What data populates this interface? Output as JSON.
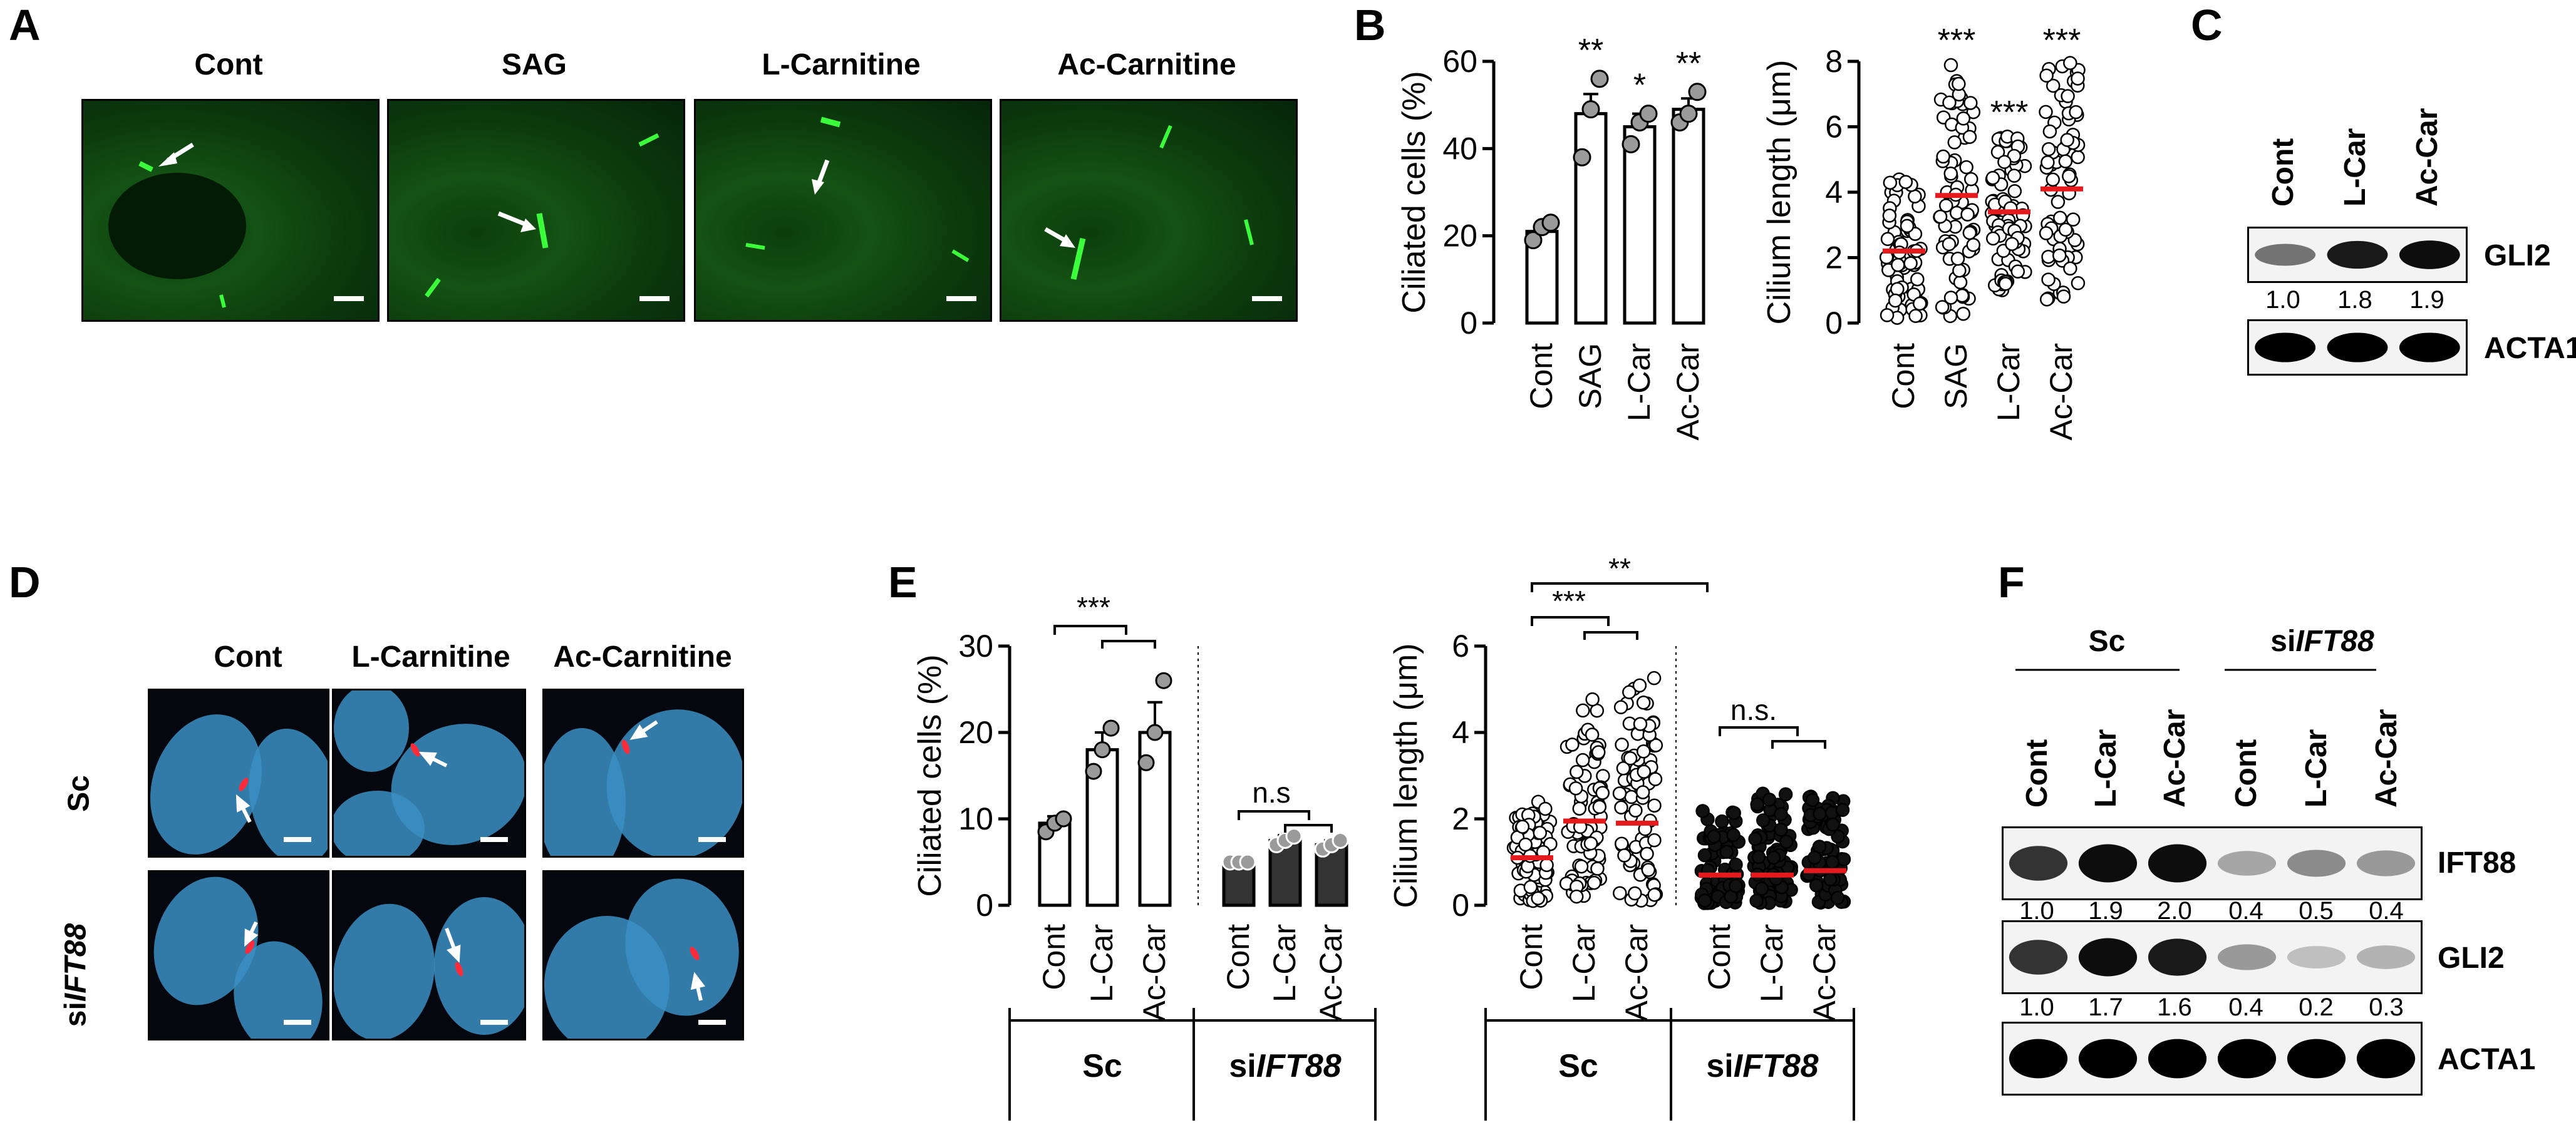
{
  "panel_labels": [
    "A",
    "B",
    "C",
    "D",
    "E",
    "F"
  ],
  "panelA": {
    "columns": [
      "Cont",
      "SAG",
      "L-Carnitine",
      "Ac-Carnitine"
    ]
  },
  "panelB": {
    "ciliated": {
      "ylabel": "Ciliated cells (%)",
      "categories": [
        "Cont",
        "SAG",
        "L-Car",
        "Ac-Car"
      ],
      "values": [
        21,
        48,
        45,
        49
      ],
      "errors": [
        1.5,
        4.5,
        3,
        2.5
      ],
      "points": [
        [
          19,
          22,
          23
        ],
        [
          38,
          49,
          56
        ],
        [
          41,
          46,
          48
        ],
        [
          46,
          48,
          53
        ]
      ],
      "ylim": [
        0,
        60
      ],
      "yticks": [
        "0",
        "20",
        "40",
        "60"
      ],
      "stars": [
        "",
        "**",
        "*",
        "**"
      ]
    },
    "length": {
      "ylabel": "Cilium length (μm)",
      "categories": [
        "Cont",
        "SAG",
        "L-Car",
        "Ac-Car"
      ],
      "medians": [
        2.2,
        3.9,
        3.4,
        4.1
      ],
      "ranges": [
        [
          0.1,
          4.4
        ],
        [
          0.2,
          8.0
        ],
        [
          1.0,
          5.8
        ],
        [
          0.6,
          8.0
        ]
      ],
      "ylim": [
        0,
        8
      ],
      "yticks": [
        "0",
        "2",
        "4",
        "6",
        "8"
      ],
      "stars": [
        "",
        "***",
        "***",
        "***"
      ]
    }
  },
  "panelC": {
    "lanes": [
      "Cont",
      "L-Car",
      "Ac-Car"
    ],
    "rows": [
      "GLI2",
      "ACTA1"
    ],
    "quant": [
      "1.0",
      "1.8",
      "1.9"
    ],
    "intensity": [
      0.55,
      0.9,
      0.95
    ]
  },
  "panelD": {
    "columns": [
      "Cont",
      "L-Carnitine",
      "Ac-Carnitine"
    ],
    "rows": [
      "Sc",
      "siIFT88"
    ]
  },
  "panelE": {
    "ciliated": {
      "ylabel": "Ciliated cells (%)",
      "categories": [
        "Cont",
        "L-Car",
        "Ac-Car",
        "Cont",
        "L-Car",
        "Ac-Car"
      ],
      "values": [
        9.5,
        18,
        20,
        5,
        7.5,
        7
      ],
      "errors": [
        0.8,
        2,
        3.5,
        0.4,
        0.6,
        0.5
      ],
      "points": [
        [
          8.5,
          9.5,
          10
        ],
        [
          15.5,
          18,
          20.5
        ],
        [
          16.5,
          20,
          26
        ],
        [
          5,
          5,
          5
        ],
        [
          7,
          7.5,
          8
        ],
        [
          6.5,
          7,
          7.5
        ]
      ],
      "ylim": [
        0,
        30
      ],
      "yticks": [
        "0",
        "10",
        "20",
        "30"
      ],
      "groups": [
        "Sc",
        "siIFT88"
      ],
      "sig": [
        "***",
        "n.s"
      ]
    },
    "length": {
      "ylabel": "Cilium length (μm)",
      "categories": [
        "Cont",
        "L-Car",
        "Ac-Car",
        "Cont",
        "L-Car",
        "Ac-Car"
      ],
      "medians": [
        1.1,
        1.95,
        1.9,
        0.7,
        0.7,
        0.8
      ],
      "ranges": [
        [
          0.1,
          2.4
        ],
        [
          0.2,
          5.0
        ],
        [
          0.1,
          5.3
        ],
        [
          0.05,
          2.2
        ],
        [
          0.05,
          2.6
        ],
        [
          0.05,
          2.6
        ]
      ],
      "ylim": [
        0,
        6
      ],
      "yticks": [
        "0",
        "2",
        "4",
        "6"
      ],
      "groups": [
        "Sc",
        "siIFT88"
      ],
      "sig": [
        "**",
        "***",
        "n.s."
      ]
    }
  },
  "panelF": {
    "groups": [
      "Sc",
      "siIFT88"
    ],
    "lanes": [
      "Cont",
      "L-Car",
      "Ac-Car",
      "Cont",
      "L-Car",
      "Ac-Car"
    ],
    "rows": [
      "IFT88",
      "GLI2",
      "ACTA1"
    ],
    "quant_ift88": [
      "1.0",
      "1.9",
      "2.0",
      "0.4",
      "0.5",
      "0.4"
    ],
    "quant_gli2": [
      "1.0",
      "1.7",
      "1.6",
      "0.4",
      "0.2",
      "0.3"
    ],
    "int_ift88": [
      0.8,
      0.95,
      0.95,
      0.35,
      0.45,
      0.4
    ],
    "int_gli2": [
      0.8,
      0.95,
      0.9,
      0.4,
      0.25,
      0.3
    ]
  },
  "colors": {
    "median": "#e41a1c",
    "bar_dark": "#333333",
    "gfp": "#3cff3c",
    "dapi": "#3b8fc4",
    "cilium_red": "#ff2a3a"
  }
}
